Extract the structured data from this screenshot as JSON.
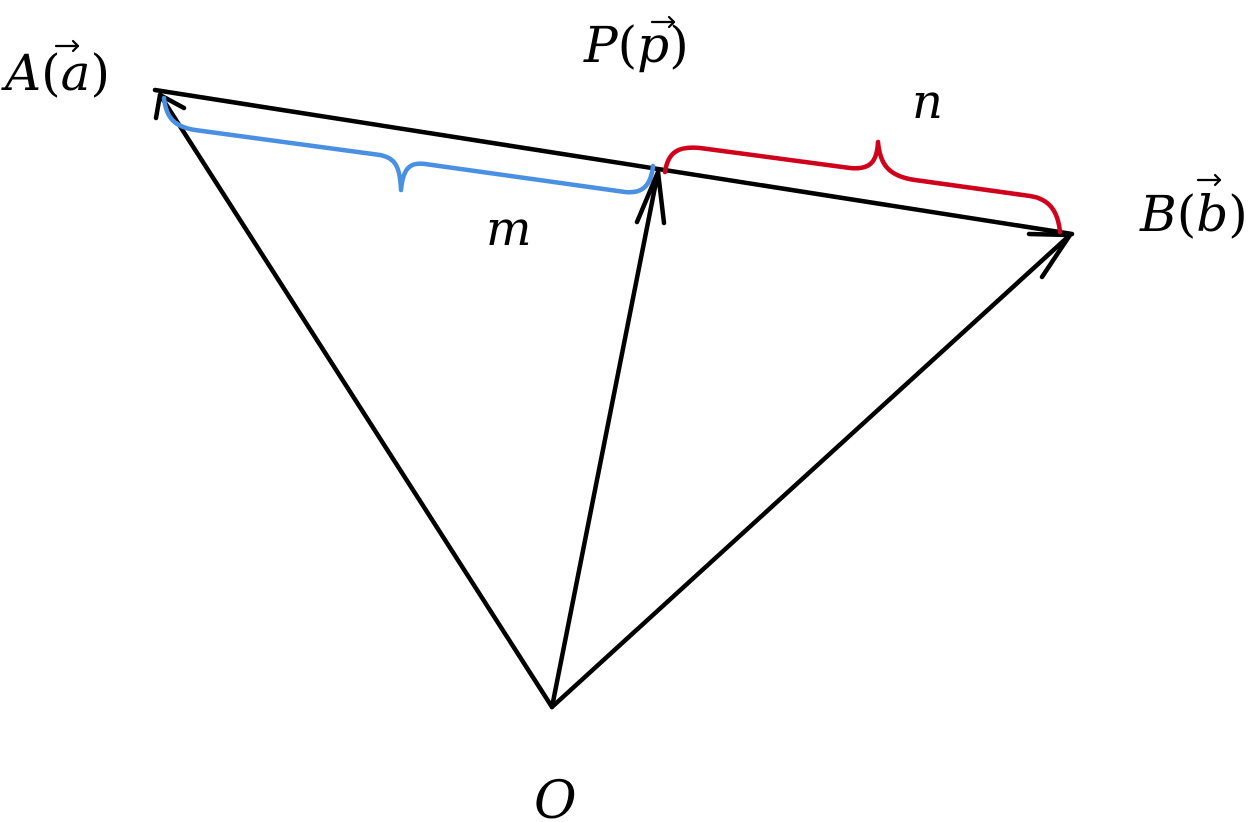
{
  "points": {
    "A": {
      "label": "A",
      "vector": "a"
    },
    "B": {
      "label": "B",
      "vector": "b"
    },
    "P": {
      "label": "P",
      "vector": "p"
    },
    "O": {
      "label": "O"
    }
  },
  "segments": {
    "m": {
      "label": "m",
      "color": "#4a90e2"
    },
    "n": {
      "label": "n",
      "color": "#d0021b"
    }
  },
  "line_color": "#000000"
}
